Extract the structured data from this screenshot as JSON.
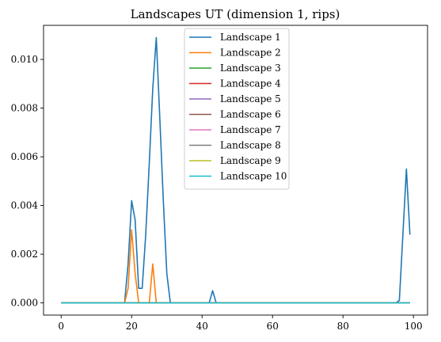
{
  "chart_data": {
    "type": "line",
    "title": "Landscapes UT (dimension 1, rips)",
    "xlabel": "",
    "ylabel": "",
    "xlim": [
      -5,
      104
    ],
    "ylim": [
      -0.0005,
      0.0114
    ],
    "xticks": [
      0,
      20,
      40,
      60,
      80,
      100
    ],
    "xtick_labels": [
      "0",
      "20",
      "40",
      "60",
      "80",
      "100"
    ],
    "yticks": [
      0,
      0.002,
      0.004,
      0.006,
      0.008,
      0.01
    ],
    "ytick_labels": [
      "0.000",
      "0.002",
      "0.004",
      "0.006",
      "0.008",
      "0.010"
    ],
    "grid": false,
    "legend_position": "top-center",
    "series": [
      {
        "name": "Landscape 1",
        "color": "#1f77b4",
        "points": [
          [
            0,
            0
          ],
          [
            18,
            0
          ],
          [
            19,
            0.0016
          ],
          [
            20,
            0.0042
          ],
          [
            21,
            0.0034
          ],
          [
            22,
            0.0006
          ],
          [
            23,
            0.0006
          ],
          [
            24,
            0.0028
          ],
          [
            25,
            0.0057
          ],
          [
            26,
            0.0088
          ],
          [
            27,
            0.0109
          ],
          [
            28,
            0.0076
          ],
          [
            29,
            0.0042
          ],
          [
            30,
            0.0012
          ],
          [
            31,
            0
          ],
          [
            42,
            0
          ],
          [
            43,
            0.0005
          ],
          [
            44,
            0
          ],
          [
            95,
            0
          ],
          [
            96,
            0.0001
          ],
          [
            97,
            0.0028
          ],
          [
            98,
            0.0055
          ],
          [
            99,
            0.0028
          ]
        ]
      },
      {
        "name": "Landscape 2",
        "color": "#ff7f0e",
        "points": [
          [
            0,
            0
          ],
          [
            18,
            0
          ],
          [
            19,
            0.0006
          ],
          [
            20,
            0.003
          ],
          [
            21,
            0.0012
          ],
          [
            22,
            0
          ],
          [
            25,
            0
          ],
          [
            26,
            0.0016
          ],
          [
            27,
            0
          ],
          [
            99,
            0
          ]
        ]
      },
      {
        "name": "Landscape 3",
        "color": "#2ca02c",
        "points": [
          [
            0,
            0
          ],
          [
            99,
            0
          ]
        ]
      },
      {
        "name": "Landscape 4",
        "color": "#d62728",
        "points": [
          [
            0,
            0
          ],
          [
            99,
            0
          ]
        ]
      },
      {
        "name": "Landscape 5",
        "color": "#9467bd",
        "points": [
          [
            0,
            0
          ],
          [
            99,
            0
          ]
        ]
      },
      {
        "name": "Landscape 6",
        "color": "#8c564b",
        "points": [
          [
            0,
            0
          ],
          [
            99,
            0
          ]
        ]
      },
      {
        "name": "Landscape 7",
        "color": "#e377c2",
        "points": [
          [
            0,
            0
          ],
          [
            99,
            0
          ]
        ]
      },
      {
        "name": "Landscape 8",
        "color": "#7f7f7f",
        "points": [
          [
            0,
            0
          ],
          [
            99,
            0
          ]
        ]
      },
      {
        "name": "Landscape 9",
        "color": "#bcbd22",
        "points": [
          [
            0,
            0
          ],
          [
            99,
            0
          ]
        ]
      },
      {
        "name": "Landscape 10",
        "color": "#17becf",
        "points": [
          [
            0,
            0
          ],
          [
            99,
            0
          ]
        ]
      }
    ]
  }
}
